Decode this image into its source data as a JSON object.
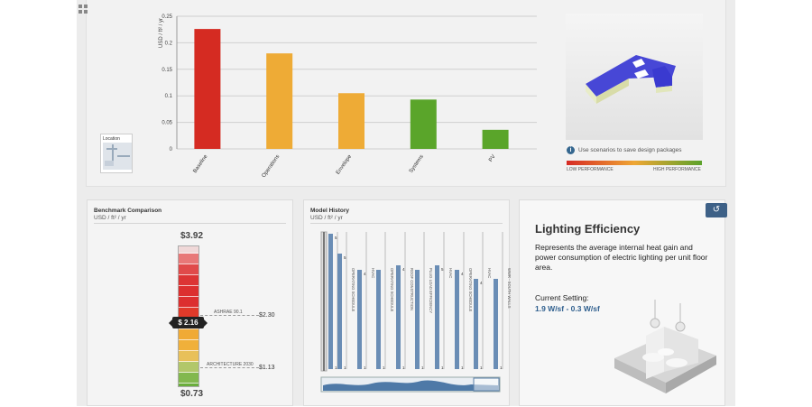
{
  "chart_data": {
    "type": "bar",
    "ylabel": "USD / ft² / yr",
    "categories": [
      "Baseline",
      "Operations",
      "Envelope",
      "Systems",
      "PV"
    ],
    "values": [
      0.226,
      0.18,
      0.105,
      0.093,
      0.036
    ],
    "colors": [
      "#d52b22",
      "#eeab36",
      "#eeab36",
      "#5aa52a",
      "#5aa52a"
    ],
    "yticks": [
      "0",
      "0.05",
      "0.1",
      "0.15",
      "0.2",
      "0.25"
    ],
    "ylim": [
      0,
      0.25
    ],
    "grid": true
  },
  "location": {
    "label": "Location"
  },
  "scenario": {
    "info_icon": "info-icon",
    "text": "Use scenarios to save design packages"
  },
  "performance": {
    "low": "LOW PERFORMANCE",
    "high": "HIGH PERFORMANCE"
  },
  "benchmark": {
    "title": "Benchmark Comparison",
    "unit": "USD / ft² / yr",
    "max": "$3.92",
    "min": "$0.73",
    "current": "$ 2.16",
    "ashrae_label": "ASHRAE 90.1",
    "ashrae_value": "$2.30",
    "arch_label": "ARCHITECTURE 2030",
    "arch_value": "$1.13"
  },
  "history": {
    "title": "Model History",
    "unit": "USD / ft² / yr",
    "items": [
      {
        "label": "",
        "top": "",
        "bottom": ""
      },
      {
        "label": "",
        "top": "5",
        "bottom": "1"
      },
      {
        "label": "OPERATING SCHEDULE",
        "top": "5",
        "bottom": "1"
      },
      {
        "label": "HVAC",
        "top": "4",
        "bottom": "1"
      },
      {
        "label": "OPERATING SCHEDULE",
        "top": "",
        "bottom": "1"
      },
      {
        "label": "ROOF CONSTRUCTION",
        "top": "4",
        "bottom": "1"
      },
      {
        "label": "PLUG LOAD EFFICIENCY",
        "top": "",
        "bottom": "1"
      },
      {
        "label": "HVAC",
        "top": "5",
        "bottom": "1"
      },
      {
        "label": "OPERATING SCHEDULE",
        "top": "4",
        "bottom": "1"
      },
      {
        "label": "HVAC",
        "top": "4",
        "bottom": "1"
      },
      {
        "label": "WWR - SOUTH WALLS",
        "top": "",
        "bottom": "1"
      }
    ]
  },
  "lighting": {
    "title": "Lighting Efficiency",
    "description": "Represents the average internal heat gain and power consumption of electric lighting per unit floor area.",
    "setting_label": "Current Setting:",
    "setting_value": "1.9 W/sf - 0.3 W/sf",
    "flip_icon": "flip-icon"
  }
}
